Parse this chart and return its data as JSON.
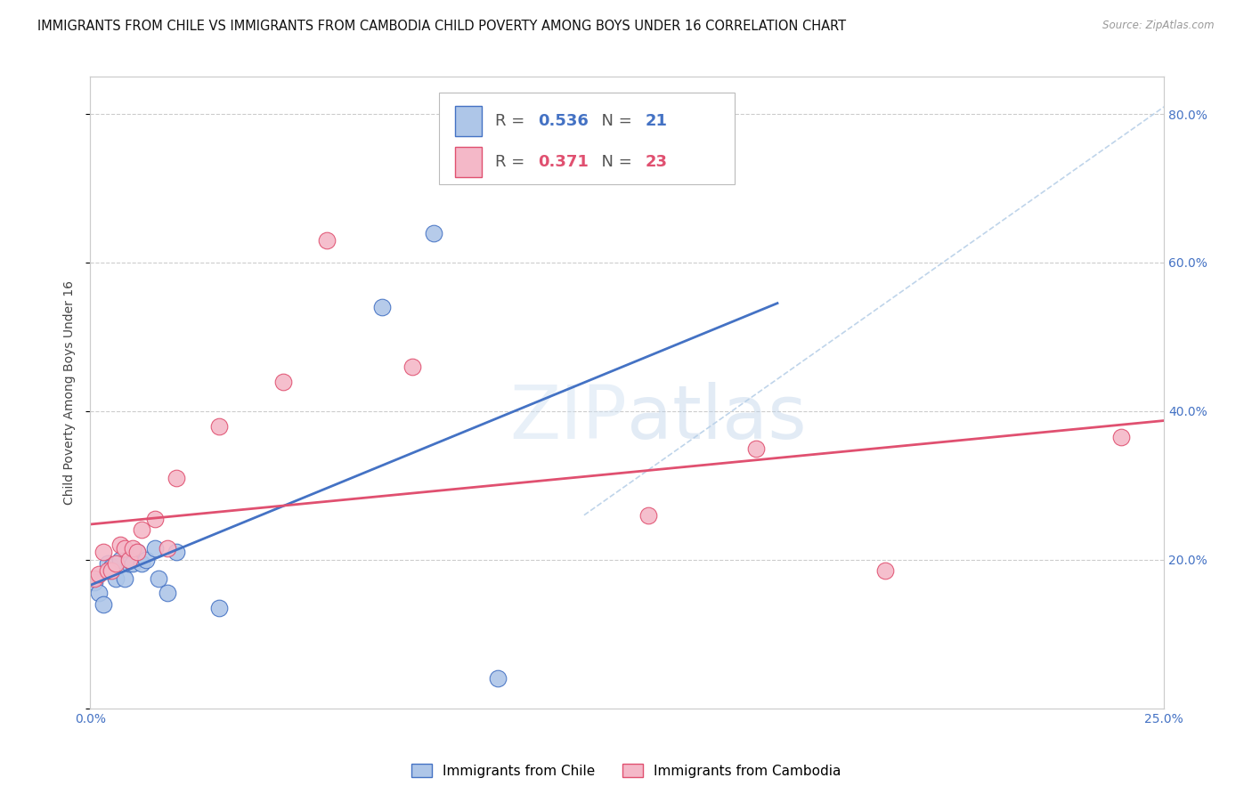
{
  "title": "IMMIGRANTS FROM CHILE VS IMMIGRANTS FROM CAMBODIA CHILD POVERTY AMONG BOYS UNDER 16 CORRELATION CHART",
  "source": "Source: ZipAtlas.com",
  "ylabel": "Child Poverty Among Boys Under 16",
  "xlim": [
    0.0,
    0.25
  ],
  "ylim": [
    0.0,
    0.85
  ],
  "xticks": [
    0.0,
    0.05,
    0.1,
    0.15,
    0.2,
    0.25
  ],
  "xticklabels": [
    "0.0%",
    "",
    "",
    "",
    "",
    "25.0%"
  ],
  "yticks_right": [
    0.0,
    0.2,
    0.4,
    0.6,
    0.8
  ],
  "ytick_right_labels": [
    "",
    "20.0%",
    "40.0%",
    "60.0%",
    "80.0%"
  ],
  "chile_color": "#aec6e8",
  "cambodia_color": "#f4b8c8",
  "chile_line_color": "#4472c4",
  "cambodia_line_color": "#e05070",
  "diagonal_color": "#b8d0e8",
  "watermark": "ZIPatlas",
  "legend_chile_r": "0.536",
  "legend_chile_n": "21",
  "legend_cambodia_r": "0.371",
  "legend_cambodia_n": "23",
  "chile_x": [
    0.001,
    0.002,
    0.003,
    0.004,
    0.005,
    0.006,
    0.007,
    0.008,
    0.009,
    0.01,
    0.011,
    0.012,
    0.013,
    0.015,
    0.016,
    0.018,
    0.02,
    0.03,
    0.068,
    0.08,
    0.095
  ],
  "chile_y": [
    0.17,
    0.155,
    0.14,
    0.195,
    0.19,
    0.175,
    0.2,
    0.175,
    0.195,
    0.195,
    0.21,
    0.195,
    0.2,
    0.215,
    0.175,
    0.155,
    0.21,
    0.135,
    0.54,
    0.64,
    0.04
  ],
  "cambodia_x": [
    0.001,
    0.002,
    0.003,
    0.004,
    0.005,
    0.006,
    0.007,
    0.008,
    0.009,
    0.01,
    0.011,
    0.012,
    0.015,
    0.018,
    0.02,
    0.03,
    0.045,
    0.055,
    0.075,
    0.13,
    0.155,
    0.185,
    0.24
  ],
  "cambodia_y": [
    0.175,
    0.18,
    0.21,
    0.185,
    0.185,
    0.195,
    0.22,
    0.215,
    0.2,
    0.215,
    0.21,
    0.24,
    0.255,
    0.215,
    0.31,
    0.38,
    0.44,
    0.63,
    0.46,
    0.26,
    0.35,
    0.185,
    0.365
  ],
  "marker_size": 180,
  "title_fontsize": 10.5,
  "axis_fontsize": 10,
  "legend_fontsize": 12
}
